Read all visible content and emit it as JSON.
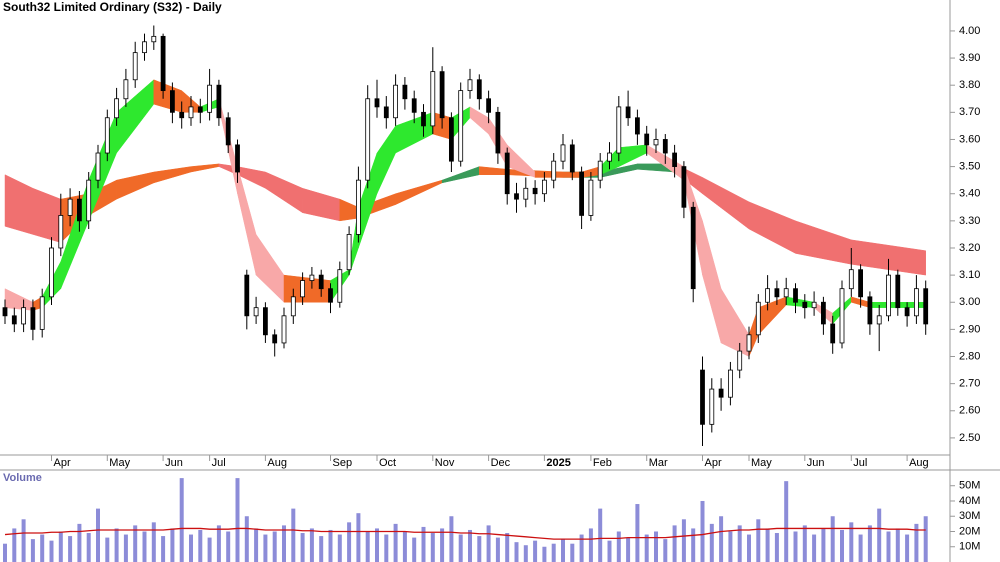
{
  "chart_data": {
    "type": "candlestick",
    "title": "South32 Limited Ordinary (S32) - Daily",
    "categories": [
      null,
      null,
      null,
      null,
      null,
      "Apr",
      null,
      null,
      null,
      null,
      null,
      "May",
      null,
      null,
      null,
      null,
      null,
      "Jun",
      null,
      null,
      null,
      null,
      "Jul",
      null,
      null,
      null,
      null,
      null,
      "Aug",
      null,
      null,
      null,
      null,
      null,
      null,
      "Sep",
      null,
      null,
      null,
      null,
      "Oct",
      null,
      null,
      null,
      null,
      null,
      "Nov",
      null,
      null,
      null,
      null,
      null,
      "Dec",
      null,
      null,
      null,
      null,
      null,
      "2025",
      null,
      null,
      null,
      null,
      "Feb",
      null,
      null,
      null,
      null,
      null,
      "Mar",
      null,
      null,
      null,
      null,
      null,
      "Apr",
      null,
      null,
      null,
      null,
      "May",
      null,
      null,
      null,
      null,
      null,
      "Jun",
      null,
      null,
      null,
      null,
      "Jul",
      null,
      null,
      null,
      null,
      null,
      "Aug",
      null,
      null
    ],
    "open": [
      2.98,
      2.95,
      2.92,
      2.98,
      2.9,
      3.02,
      3.2,
      3.32,
      3.38,
      3.3,
      3.45,
      3.55,
      3.68,
      3.75,
      3.82,
      3.92,
      3.96,
      3.98,
      3.78,
      3.7,
      3.68,
      3.72,
      3.7,
      3.8,
      3.68,
      3.58,
      3.1,
      2.95,
      2.98,
      2.88,
      2.85,
      2.95,
      3.02,
      3.08,
      3.1,
      3.05,
      3.0,
      3.12,
      3.25,
      3.45,
      3.75,
      3.72,
      3.68,
      3.8,
      3.75,
      3.7,
      3.65,
      3.85,
      3.68,
      3.52,
      3.78,
      3.82,
      3.75,
      3.7,
      3.55,
      3.4,
      3.38,
      3.42,
      3.4,
      3.45,
      3.52,
      3.58,
      3.48,
      3.32,
      3.45,
      3.52,
      3.55,
      3.72,
      3.68,
      3.62,
      3.58,
      3.6,
      3.55,
      3.5,
      3.35,
      2.75,
      2.55,
      2.68,
      2.65,
      2.75,
      2.82,
      2.88,
      3.0,
      3.05,
      3.02,
      3.05,
      3.0,
      2.98,
      3.0,
      2.92,
      2.85,
      3.05,
      3.12,
      3.02,
      2.92,
      2.95,
      3.1,
      2.98,
      2.95,
      3.05
    ],
    "high": [
      3.01,
      2.98,
      3.01,
      3.01,
      3.05,
      3.24,
      3.4,
      3.42,
      3.41,
      3.48,
      3.58,
      3.71,
      3.79,
      3.86,
      3.96,
      3.99,
      4.02,
      3.99,
      3.81,
      3.74,
      3.76,
      3.75,
      3.86,
      3.82,
      3.7,
      3.6,
      3.12,
      3.02,
      3.0,
      2.9,
      2.98,
      3.05,
      3.11,
      3.13,
      3.12,
      3.07,
      3.15,
      3.28,
      3.5,
      3.8,
      3.82,
      3.76,
      3.84,
      3.83,
      3.78,
      3.73,
      3.94,
      3.87,
      3.7,
      3.81,
      3.86,
      3.84,
      3.78,
      3.72,
      3.57,
      3.44,
      3.46,
      3.45,
      3.48,
      3.55,
      3.62,
      3.6,
      3.5,
      3.48,
      3.55,
      3.59,
      3.76,
      3.78,
      3.71,
      3.65,
      3.64,
      3.62,
      3.58,
      3.52,
      3.37,
      2.8,
      2.72,
      2.72,
      2.78,
      2.85,
      2.91,
      3.03,
      3.1,
      3.08,
      3.09,
      3.07,
      3.03,
      3.04,
      3.02,
      2.95,
      3.08,
      3.2,
      3.14,
      3.04,
      2.99,
      3.16,
      3.12,
      3.0,
      3.1,
      3.08
    ],
    "low": [
      2.92,
      2.89,
      2.89,
      2.86,
      2.87,
      2.99,
      3.17,
      3.28,
      3.26,
      3.27,
      3.42,
      3.52,
      3.65,
      3.72,
      3.79,
      3.89,
      3.93,
      3.75,
      3.66,
      3.64,
      3.65,
      3.66,
      3.67,
      3.65,
      3.55,
      3.44,
      2.9,
      2.92,
      2.85,
      2.8,
      2.83,
      2.92,
      2.99,
      3.05,
      3.02,
      2.96,
      2.98,
      3.1,
      3.22,
      3.42,
      3.68,
      3.64,
      3.65,
      3.71,
      3.66,
      3.61,
      3.62,
      3.64,
      3.48,
      3.5,
      3.75,
      3.71,
      3.66,
      3.51,
      3.36,
      3.33,
      3.35,
      3.36,
      3.37,
      3.42,
      3.49,
      3.45,
      3.27,
      3.3,
      3.42,
      3.49,
      3.52,
      3.65,
      3.58,
      3.54,
      3.55,
      3.51,
      3.46,
      3.31,
      3.0,
      2.47,
      2.52,
      2.6,
      2.62,
      2.72,
      2.79,
      2.85,
      2.97,
      2.99,
      2.99,
      2.96,
      2.94,
      2.95,
      2.88,
      2.81,
      2.83,
      3.02,
      2.98,
      2.88,
      2.82,
      2.93,
      2.95,
      2.91,
      2.92,
      2.88
    ],
    "close": [
      2.95,
      2.92,
      2.98,
      2.9,
      3.02,
      3.2,
      3.32,
      3.38,
      3.3,
      3.45,
      3.55,
      3.68,
      3.75,
      3.82,
      3.92,
      3.96,
      3.98,
      3.78,
      3.7,
      3.68,
      3.72,
      3.7,
      3.8,
      3.68,
      3.58,
      3.48,
      2.95,
      2.98,
      2.88,
      2.85,
      2.95,
      3.02,
      3.08,
      3.1,
      3.05,
      3.0,
      3.12,
      3.25,
      3.45,
      3.75,
      3.72,
      3.68,
      3.8,
      3.75,
      3.7,
      3.65,
      3.85,
      3.68,
      3.52,
      3.78,
      3.82,
      3.75,
      3.7,
      3.55,
      3.4,
      3.38,
      3.42,
      3.4,
      3.45,
      3.52,
      3.58,
      3.48,
      3.32,
      3.45,
      3.52,
      3.55,
      3.72,
      3.68,
      3.62,
      3.58,
      3.6,
      3.55,
      3.5,
      3.35,
      3.05,
      2.55,
      2.68,
      2.65,
      2.75,
      2.82,
      2.88,
      3.0,
      3.05,
      3.02,
      3.05,
      3.0,
      2.98,
      3.0,
      2.92,
      2.85,
      3.05,
      3.12,
      3.02,
      2.92,
      2.95,
      3.1,
      2.98,
      2.95,
      3.05,
      2.92
    ],
    "up_fill": "#ffffff",
    "down_fill": "#000000",
    "candle_stroke": "#000000",
    "ylim": [
      2.437,
      4.114
    ],
    "yticks": [
      {
        "value": 2.5,
        "label": "2.50"
      },
      {
        "value": 2.6,
        "label": "2.60"
      },
      {
        "value": 2.7,
        "label": "2.70"
      },
      {
        "value": 2.8,
        "label": "2.80"
      },
      {
        "value": 2.9,
        "label": "2.90"
      },
      {
        "value": 3.0,
        "label": "3.00"
      },
      {
        "value": 3.1,
        "label": "3.10"
      },
      {
        "value": 3.2,
        "label": "3.20"
      },
      {
        "value": 3.3,
        "label": "3.30"
      },
      {
        "value": 3.4,
        "label": "3.40"
      },
      {
        "value": 3.5,
        "label": "3.50"
      },
      {
        "value": 3.6,
        "label": "3.60"
      },
      {
        "value": 3.7,
        "label": "3.70"
      },
      {
        "value": 3.8,
        "label": "3.80"
      },
      {
        "value": 3.9,
        "label": "3.90"
      },
      {
        "value": 4.0,
        "label": "4.00"
      }
    ],
    "bands": [
      {
        "index": [
          0,
          3,
          6,
          9,
          12,
          16,
          20,
          23,
          25,
          28,
          32,
          36,
          38,
          42,
          47,
          51,
          54,
          60,
          64,
          68,
          72,
          75,
          80,
          85,
          91,
          99
        ],
        "upper": [
          3.47,
          3.42,
          3.38,
          3.4,
          3.45,
          3.48,
          3.5,
          3.51,
          3.5,
          3.48,
          3.42,
          3.38,
          3.35,
          3.4,
          3.45,
          3.5,
          3.49,
          3.48,
          3.48,
          3.51,
          3.51,
          3.46,
          3.37,
          3.3,
          3.23,
          3.19
        ],
        "lower": [
          3.28,
          3.25,
          3.22,
          3.32,
          3.38,
          3.44,
          3.48,
          3.5,
          3.47,
          3.42,
          3.33,
          3.3,
          3.31,
          3.36,
          3.44,
          3.47,
          3.47,
          3.46,
          3.46,
          3.49,
          3.48,
          3.4,
          3.27,
          3.18,
          3.14,
          3.1
        ],
        "colors": [
          "#f07070",
          "#f07070",
          "#f06a28",
          "#f06a28",
          "#f06a28",
          "#f06a28",
          "#f06a28",
          "#f07070",
          "#f07070",
          "#f07070",
          "#f07070",
          "#f06a28",
          "#f06a28",
          "#f06a28",
          "#3a9a5a",
          "#f06a28",
          "#f06a28",
          "#3a9a5a",
          "#3a9a5a",
          "#3a9a5a",
          "#f07070",
          "#f07070",
          "#f07070",
          "#f07070",
          "#f07070",
          "#f07070"
        ]
      },
      {
        "index": [
          0,
          3,
          4,
          6,
          9,
          12,
          16,
          19,
          21,
          23,
          25,
          27,
          30,
          35,
          37,
          38,
          40,
          42,
          46,
          48,
          50,
          52,
          54,
          57,
          62,
          64,
          66,
          69,
          73,
          75,
          77,
          80,
          81,
          84,
          87,
          89,
          91,
          93,
          99
        ],
        "upper": [
          3.05,
          3.0,
          3.02,
          3.15,
          3.45,
          3.7,
          3.82,
          3.78,
          3.72,
          3.75,
          3.5,
          3.25,
          3.1,
          3.08,
          3.12,
          3.35,
          3.55,
          3.65,
          3.7,
          3.68,
          3.72,
          3.68,
          3.58,
          3.48,
          3.48,
          3.5,
          3.57,
          3.58,
          3.5,
          3.3,
          3.05,
          2.88,
          2.98,
          3.02,
          3.0,
          2.96,
          3.02,
          3.0,
          3.0
        ],
        "lower": [
          2.98,
          2.97,
          2.98,
          3.05,
          3.3,
          3.55,
          3.73,
          3.7,
          3.7,
          3.72,
          3.4,
          3.1,
          3.0,
          3.0,
          3.1,
          3.2,
          3.4,
          3.55,
          3.62,
          3.6,
          3.68,
          3.62,
          3.5,
          3.46,
          3.46,
          3.47,
          3.5,
          3.55,
          3.45,
          3.1,
          2.85,
          2.8,
          2.88,
          2.99,
          2.98,
          2.92,
          3.0,
          2.98,
          2.98
        ],
        "colors": [
          "#f8a8a8",
          "#f06a28",
          "#2ee82e",
          "#2ee82e",
          "#2ee82e",
          "#2ee82e",
          "#f06a28",
          "#f06a28",
          "#2ee82e",
          "#f8a8a8",
          "#f8a8a8",
          "#f8a8a8",
          "#f06a28",
          "#2ee82e",
          "#2ee82e",
          "#2ee82e",
          "#2ee82e",
          "#2ee82e",
          "#f06a28",
          "#2ee82e",
          "#f8a8a8",
          "#f8a8a8",
          "#f8a8a8",
          "#f06a28",
          "#f06a28",
          "#2ee82e",
          "#2ee82e",
          "#f8a8a8",
          "#f8a8a8",
          "#f8a8a8",
          "#f8a8a8",
          "#f06a28",
          "#f06a28",
          "#2ee82e",
          "#f8a8a8",
          "#2ee82e",
          "#f06a28",
          "#2ee82e",
          "#2ee82e"
        ]
      }
    ],
    "volume": {
      "label": "Volume",
      "values": [
        12,
        22,
        28,
        15,
        18,
        14,
        20,
        17,
        25,
        19,
        35,
        16,
        22,
        18,
        24,
        20,
        26,
        17,
        22,
        55,
        18,
        21,
        16,
        24,
        20,
        55,
        30,
        22,
        18,
        20,
        24,
        35,
        19,
        22,
        17,
        21,
        18,
        26,
        32,
        20,
        22,
        18,
        25,
        20,
        16,
        23,
        19,
        22,
        30,
        18,
        21,
        17,
        24,
        16,
        19,
        13,
        11,
        14,
        10,
        12,
        15,
        12,
        18,
        22,
        35,
        14,
        20,
        16,
        38,
        18,
        20,
        15,
        24,
        28,
        22,
        40,
        25,
        30,
        20,
        24,
        18,
        28,
        22,
        19,
        53,
        20,
        24,
        18,
        22,
        30,
        21,
        26,
        18,
        24,
        35,
        20,
        22,
        18,
        25,
        30
      ],
      "average": [
        18,
        18.5,
        19,
        19,
        19,
        19.5,
        19.5,
        20,
        20,
        20.5,
        21,
        21,
        21,
        21,
        21,
        21,
        21,
        21,
        21.5,
        22,
        22,
        22,
        21.5,
        21.5,
        21.5,
        22,
        22,
        21.5,
        21,
        21,
        21,
        21,
        20.5,
        20.5,
        20,
        20,
        20,
        20,
        20,
        20,
        20,
        20,
        20,
        20,
        19.5,
        19.5,
        19.5,
        19.5,
        19.5,
        19,
        19,
        18.5,
        18.5,
        18,
        17.5,
        17,
        16.5,
        16,
        15.5,
        15,
        15,
        15,
        15,
        15,
        15.5,
        15.5,
        15.5,
        16,
        16,
        16,
        16,
        16,
        16.5,
        17,
        17.5,
        18,
        19,
        20,
        20.5,
        21,
        21,
        21.5,
        21.5,
        22,
        22,
        22,
        22,
        22,
        22,
        22,
        22,
        22,
        22,
        22,
        22,
        21.5,
        21.5,
        21.5,
        21,
        21
      ],
      "color": "#8c8cd8",
      "average_color": "#cc1010",
      "ylim": [
        0,
        59
      ],
      "yticks": [
        {
          "value": 10,
          "label": "10M"
        },
        {
          "value": 20,
          "label": "20M"
        },
        {
          "value": 30,
          "label": "30M"
        },
        {
          "value": 40,
          "label": "40M"
        },
        {
          "value": 50,
          "label": "50M"
        }
      ]
    }
  }
}
